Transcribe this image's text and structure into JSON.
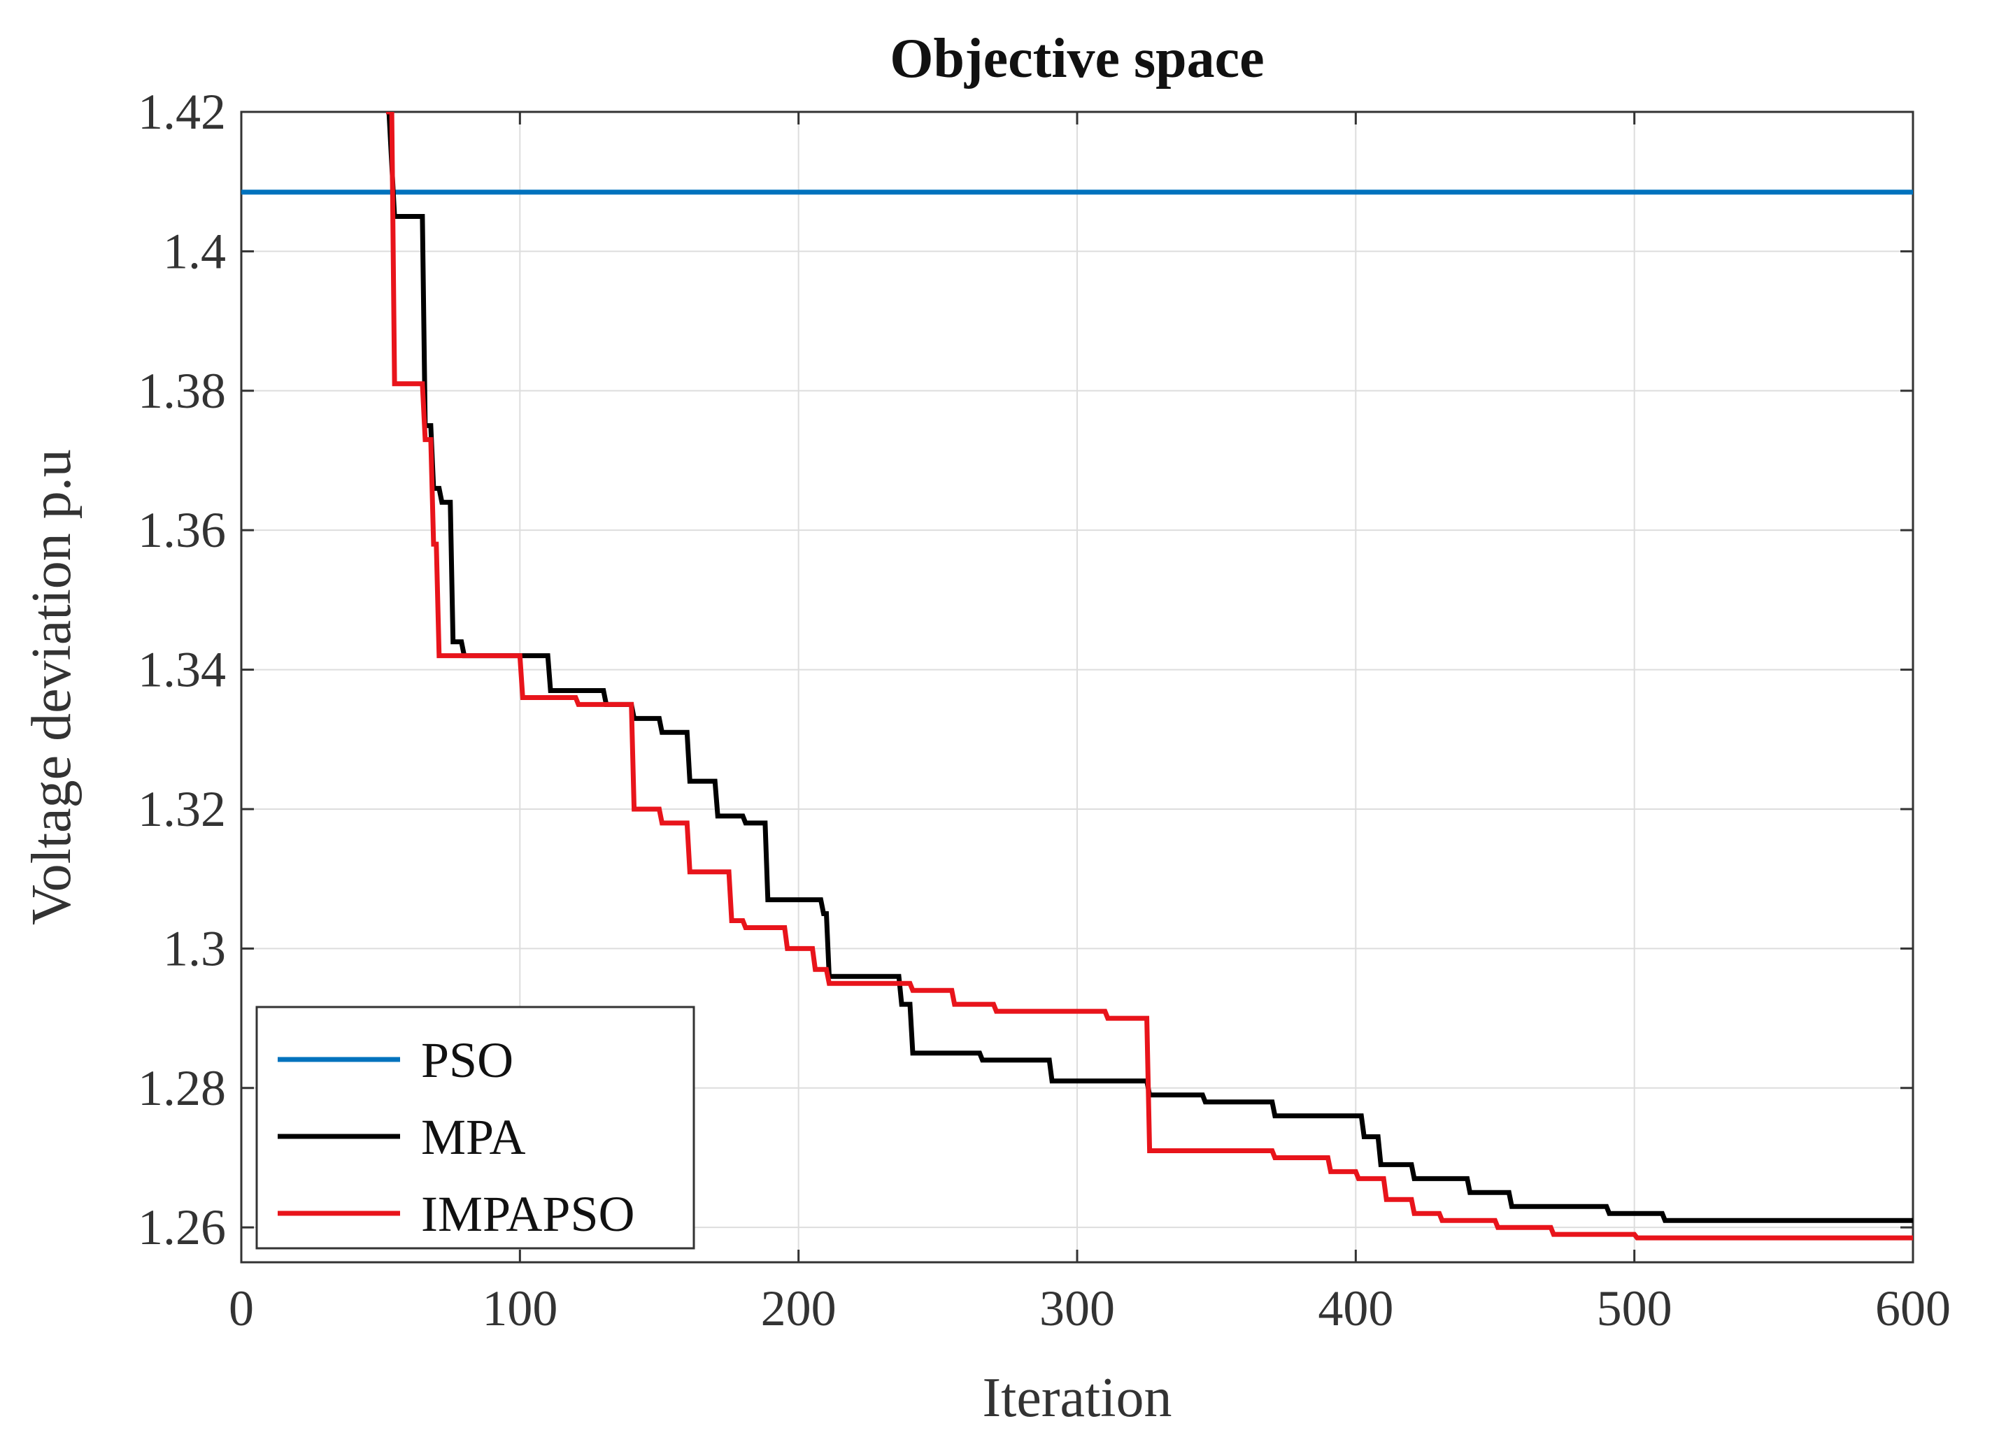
{
  "chart_data": {
    "type": "line",
    "title": "Objective space",
    "xlabel": "Iteration",
    "ylabel": "Voltage deviation p.u",
    "xlim": [
      0,
      600
    ],
    "ylim": [
      1.255,
      1.42
    ],
    "xticks": [
      0,
      100,
      200,
      300,
      400,
      500,
      600
    ],
    "yticks": [
      1.26,
      1.28,
      1.3,
      1.32,
      1.34,
      1.36,
      1.38,
      1.4,
      1.42
    ],
    "xtick_labels": [
      "0",
      "100",
      "200",
      "300",
      "400",
      "500",
      "600"
    ],
    "ytick_labels": [
      "1.26",
      "1.28",
      "1.3",
      "1.32",
      "1.34",
      "1.36",
      "1.38",
      "1.4",
      "1.42"
    ],
    "grid": true,
    "legend_position": "bottom-left",
    "series": [
      {
        "name": "PSO",
        "color": "#0072BD",
        "x": [
          0,
          600
        ],
        "y": [
          1.4085,
          1.4085
        ]
      },
      {
        "name": "MPA",
        "color": "#000000",
        "x": [
          52,
          53,
          55,
          56,
          65,
          66,
          68,
          69,
          71,
          72,
          75,
          76,
          79,
          80,
          100,
          101,
          110,
          111,
          120,
          121,
          130,
          131,
          140,
          141,
          150,
          151,
          160,
          161,
          170,
          171,
          180,
          181,
          188,
          189,
          200,
          201,
          208,
          209,
          210,
          211,
          236,
          237,
          240,
          241,
          265,
          266,
          290,
          291,
          300,
          301,
          325,
          326,
          345,
          346,
          370,
          371,
          402,
          403,
          408,
          409,
          420,
          421,
          440,
          441,
          455,
          456,
          470,
          471,
          490,
          491,
          510,
          511,
          530,
          531,
          600
        ],
        "y": [
          1.42,
          1.42,
          1.405,
          1.405,
          1.405,
          1.375,
          1.375,
          1.366,
          1.366,
          1.364,
          1.364,
          1.344,
          1.344,
          1.342,
          1.342,
          1.342,
          1.342,
          1.337,
          1.337,
          1.337,
          1.337,
          1.335,
          1.335,
          1.333,
          1.333,
          1.331,
          1.331,
          1.324,
          1.324,
          1.319,
          1.319,
          1.318,
          1.318,
          1.307,
          1.307,
          1.307,
          1.307,
          1.305,
          1.305,
          1.296,
          1.296,
          1.292,
          1.292,
          1.285,
          1.285,
          1.284,
          1.284,
          1.281,
          1.281,
          1.281,
          1.281,
          1.279,
          1.279,
          1.278,
          1.278,
          1.276,
          1.276,
          1.273,
          1.273,
          1.269,
          1.269,
          1.267,
          1.267,
          1.265,
          1.265,
          1.263,
          1.263,
          1.263,
          1.263,
          1.262,
          1.262,
          1.261,
          1.261,
          1.261,
          1.261
        ]
      },
      {
        "name": "IMPAPSO",
        "color": "#E8141B",
        "x": [
          52,
          53,
          54,
          55,
          65,
          66,
          68,
          69,
          70,
          71,
          100,
          101,
          120,
          121,
          140,
          141,
          150,
          151,
          160,
          161,
          175,
          176,
          180,
          181,
          195,
          196,
          205,
          206,
          210,
          211,
          240,
          241,
          255,
          256,
          270,
          271,
          300,
          301,
          310,
          311,
          322,
          323,
          325,
          326,
          370,
          371,
          390,
          391,
          400,
          401,
          410,
          411,
          420,
          421,
          430,
          431,
          450,
          451,
          470,
          471,
          500,
          501,
          540,
          541,
          600
        ],
        "y": [
          1.42,
          1.42,
          1.42,
          1.381,
          1.381,
          1.373,
          1.373,
          1.358,
          1.358,
          1.342,
          1.342,
          1.336,
          1.336,
          1.335,
          1.335,
          1.32,
          1.32,
          1.318,
          1.318,
          1.311,
          1.311,
          1.304,
          1.304,
          1.303,
          1.303,
          1.3,
          1.3,
          1.297,
          1.297,
          1.295,
          1.295,
          1.294,
          1.294,
          1.292,
          1.292,
          1.291,
          1.291,
          1.291,
          1.291,
          1.29,
          1.29,
          1.29,
          1.29,
          1.271,
          1.271,
          1.27,
          1.27,
          1.268,
          1.268,
          1.267,
          1.267,
          1.264,
          1.264,
          1.262,
          1.262,
          1.261,
          1.261,
          1.26,
          1.26,
          1.259,
          1.259,
          1.2585,
          1.2585,
          1.2585,
          1.2585
        ]
      }
    ]
  }
}
